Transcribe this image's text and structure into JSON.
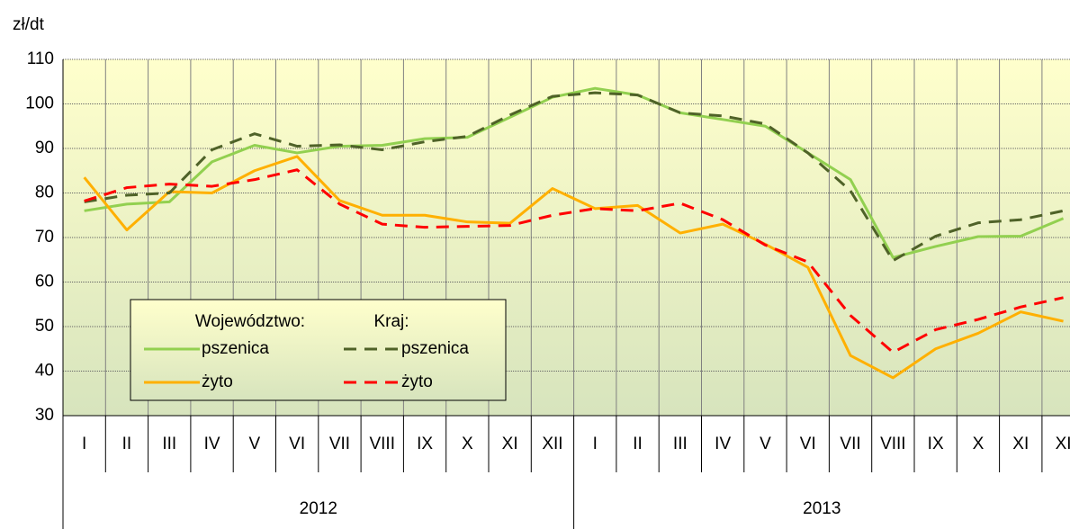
{
  "chart_data": {
    "type": "line",
    "y_unit": "zł/dt",
    "category_groups": [
      {
        "name": "2012",
        "categories": [
          "I",
          "II",
          "III",
          "IV",
          "V",
          "VI",
          "VII",
          "VIII",
          "IX",
          "X",
          "XI",
          "XII"
        ]
      },
      {
        "name": "2013",
        "categories": [
          "I",
          "II",
          "III",
          "IV",
          "V",
          "VI",
          "VII",
          "VIII",
          "IX",
          "X",
          "XI",
          "XI"
        ]
      }
    ],
    "legend_groups": [
      "Województwo:",
      "Kraj:"
    ],
    "series": [
      {
        "name": "pszenica",
        "color": "#92d050",
        "dash": false,
        "values": [
          76,
          77.5,
          78,
          87,
          90.7,
          89,
          90.5,
          90.7,
          92.2,
          92.5,
          97,
          101.5,
          103.5,
          102,
          98,
          96.5,
          95,
          89,
          83,
          65.5,
          68,
          70.2,
          70.3,
          74.3
        ]
      },
      {
        "name": "żyto",
        "color": "#ffb000",
        "dash": false,
        "values": [
          83.5,
          71.7,
          80.3,
          80,
          85,
          88.2,
          78.3,
          75,
          75,
          73.5,
          73.2,
          81,
          76.5,
          77.2,
          71,
          73,
          68.5,
          63.3,
          43.5,
          38.5,
          45,
          48.5,
          53.3,
          51.2
        ]
      },
      {
        "name": "pszenica",
        "color": "#4f6228",
        "dash": true,
        "values": [
          78,
          79.5,
          80,
          89.7,
          93.3,
          90.5,
          90.8,
          89.7,
          91.5,
          92.7,
          97.5,
          101.7,
          102.5,
          102,
          98,
          97.3,
          95.5,
          89,
          80.5,
          64.8,
          70.3,
          73.3,
          74,
          76
        ]
      },
      {
        "name": "żyto",
        "color": "#ff0000",
        "dash": true,
        "values": [
          78.2,
          81.2,
          82,
          81.5,
          83,
          85.2,
          77.5,
          73,
          72.3,
          72.5,
          72.7,
          75,
          76.5,
          76,
          77.7,
          74,
          68.3,
          64.5,
          52.5,
          44.2,
          49.3,
          51.6,
          54.4,
          56.5
        ]
      }
    ],
    "ylim": [
      30,
      110
    ],
    "yticks": [
      30,
      40,
      50,
      60,
      70,
      80,
      90,
      100,
      110
    ],
    "grid": true
  }
}
